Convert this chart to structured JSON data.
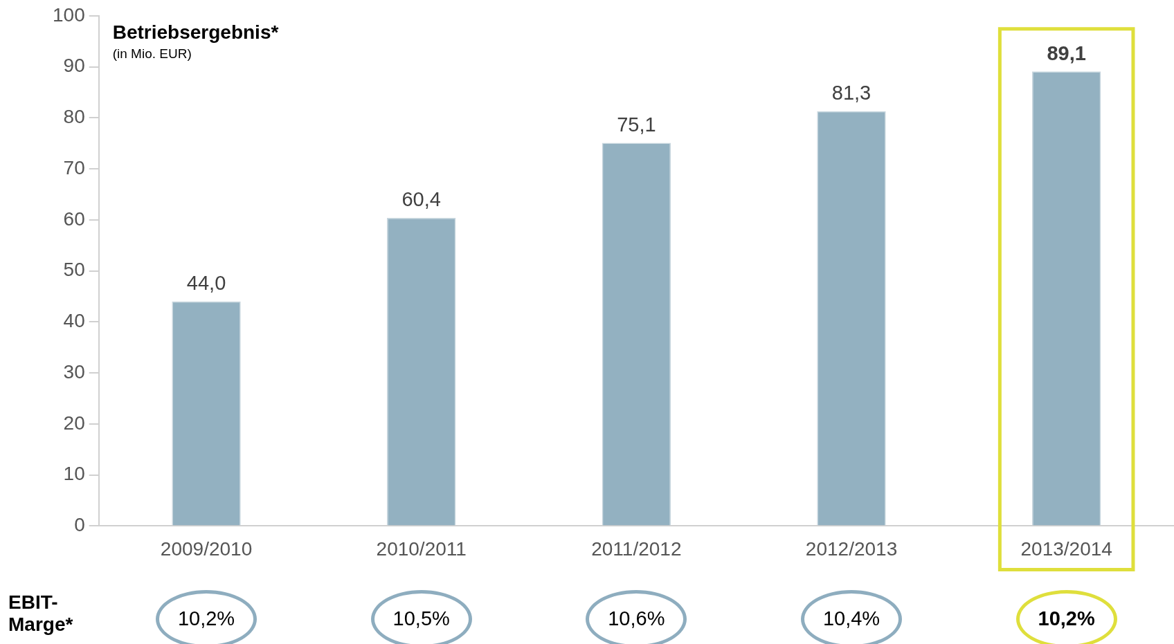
{
  "chart_data": {
    "type": "bar",
    "title": "Betriebsergebnis*",
    "subtitle": "(in Mio. EUR)",
    "categories": [
      "2009/2010",
      "2010/2011",
      "2011/2012",
      "2012/2013",
      "2013/2014"
    ],
    "values": [
      44.0,
      60.4,
      75.1,
      81.3,
      89.1
    ],
    "value_labels": [
      "44,0",
      "60,4",
      "75,1",
      "81,3",
      "89,1"
    ],
    "color": "#93b1c1",
    "ylim": [
      0,
      100
    ],
    "yticks": [
      0,
      10,
      20,
      30,
      40,
      50,
      60,
      70,
      80,
      90,
      100
    ],
    "grid": false,
    "legend": false,
    "bands": [
      {
        "axis": "x",
        "from": "2013/2014",
        "to": "2013/2014"
      }
    ],
    "annotations": [
      "EBIT-Marge*",
      "10,2%",
      "10,5%",
      "10,6%",
      "10,4%",
      "10,2%"
    ]
  }
}
